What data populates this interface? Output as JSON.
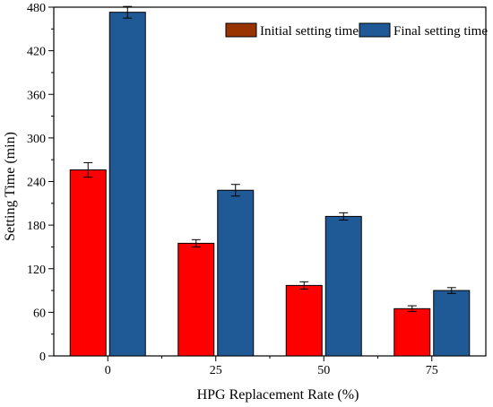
{
  "chart_data": {
    "type": "bar",
    "categories": [
      "0",
      "25",
      "50",
      "75"
    ],
    "series": [
      {
        "name": "Initial setting time",
        "values": [
          256,
          155,
          97,
          65
        ],
        "errors": [
          10,
          5,
          5,
          4
        ],
        "color": "#ff0000",
        "legend_color": "#993300"
      },
      {
        "name": "Final setting time",
        "values": [
          473,
          228,
          192,
          90
        ],
        "errors": [
          8,
          8,
          5,
          4
        ],
        "color": "#1f5a96"
      }
    ],
    "title": "",
    "xlabel": "HPG Replacement Rate (%)",
    "ylabel": "Setting Time (min)",
    "ylim": [
      0,
      480
    ],
    "yticks": [
      0,
      60,
      120,
      180,
      240,
      300,
      360,
      420,
      480
    ],
    "legend_position": "top-right",
    "grid": false
  }
}
